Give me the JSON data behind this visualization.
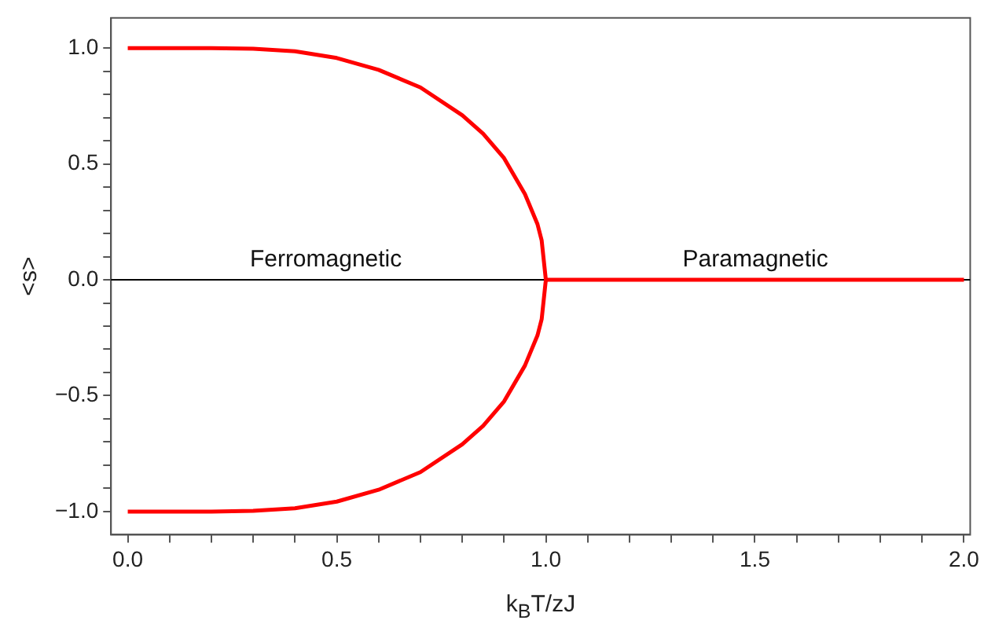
{
  "chart_data": {
    "type": "line",
    "xlabel": "k$_{B}$T/zJ",
    "ylabel": "<s>",
    "xlim": [
      -0.04,
      2.015
    ],
    "ylim": [
      -1.1,
      1.13
    ],
    "xticks": [
      {
        "value": 0,
        "label": "0.0"
      },
      {
        "value": 0.1,
        "label": null
      },
      {
        "value": 0.2,
        "label": null
      },
      {
        "value": 0.3,
        "label": null
      },
      {
        "value": 0.4,
        "label": null
      },
      {
        "value": 0.5,
        "label": "0.5"
      },
      {
        "value": 0.6,
        "label": null
      },
      {
        "value": 0.7,
        "label": null
      },
      {
        "value": 0.8,
        "label": null
      },
      {
        "value": 0.9,
        "label": null
      },
      {
        "value": 1,
        "label": "1.0"
      },
      {
        "value": 1.1,
        "label": null
      },
      {
        "value": 1.2,
        "label": null
      },
      {
        "value": 1.3,
        "label": null
      },
      {
        "value": 1.4,
        "label": null
      },
      {
        "value": 1.5,
        "label": "1.5"
      },
      {
        "value": 1.6,
        "label": null
      },
      {
        "value": 1.7,
        "label": null
      },
      {
        "value": 1.8,
        "label": null
      },
      {
        "value": 1.9,
        "label": null
      },
      {
        "value": 2,
        "label": "2.0"
      }
    ],
    "yticks": [
      {
        "value": -1,
        "label": "−1.0"
      },
      {
        "value": -0.9,
        "label": null
      },
      {
        "value": -0.8,
        "label": null
      },
      {
        "value": -0.7,
        "label": null
      },
      {
        "value": -0.6,
        "label": null
      },
      {
        "value": -0.5,
        "label": "−0.5"
      },
      {
        "value": -0.4,
        "label": null
      },
      {
        "value": -0.3,
        "label": null
      },
      {
        "value": -0.2,
        "label": null
      },
      {
        "value": -0.1,
        "label": null
      },
      {
        "value": 0,
        "label": "0.0"
      },
      {
        "value": 0.1,
        "label": null
      },
      {
        "value": 0.2,
        "label": null
      },
      {
        "value": 0.3,
        "label": null
      },
      {
        "value": 0.4,
        "label": null
      },
      {
        "value": 0.5,
        "label": "0.5"
      },
      {
        "value": 0.6,
        "label": null
      },
      {
        "value": 0.7,
        "label": null
      },
      {
        "value": 0.8,
        "label": null
      },
      {
        "value": 0.9,
        "label": null
      },
      {
        "value": 1,
        "label": "1.0"
      }
    ],
    "series": [
      {
        "color": "#ff0000",
        "x": [
          0,
          0.2,
          0.3,
          0.4,
          0.5,
          0.6,
          0.7,
          0.8,
          0.85,
          0.9,
          0.95,
          0.98,
          0.99,
          1.0,
          2.0
        ],
        "values": [
          1,
          1,
          0.997,
          0.986,
          0.957,
          0.906,
          0.83,
          0.71,
          0.63,
          0.525,
          0.37,
          0.24,
          0.17,
          0,
          0
        ]
      },
      {
        "color": "#ff0000",
        "x": [
          0,
          0.2,
          0.3,
          0.4,
          0.5,
          0.6,
          0.7,
          0.8,
          0.85,
          0.9,
          0.95,
          0.98,
          0.99,
          1.0
        ],
        "values": [
          -1,
          -1,
          -0.997,
          -0.986,
          -0.957,
          -0.906,
          -0.83,
          -0.71,
          -0.63,
          -0.525,
          -0.37,
          -0.24,
          -0.17,
          0
        ]
      }
    ],
    "ref_lines": [
      {
        "axis": "y",
        "value": 0,
        "color": "#000000"
      }
    ],
    "annotations": [
      "Ferromagnetic",
      "Paramagnetic"
    ],
    "grid": false,
    "legend": false,
    "marker": "none",
    "line_style": "solid"
  }
}
